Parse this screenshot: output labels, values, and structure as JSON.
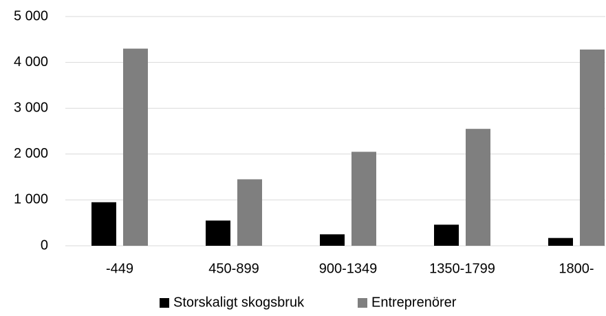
{
  "chart_data": {
    "type": "bar",
    "categories": [
      "-449",
      "450-899",
      "900-1349",
      "1350-1799",
      "1800-"
    ],
    "series": [
      {
        "name": "Storskaligt skogsbruk",
        "color": "#000000",
        "values": [
          950,
          550,
          250,
          460,
          170
        ]
      },
      {
        "name": "Entreprenörer",
        "color": "#7f7f7f",
        "values": [
          4300,
          1450,
          2050,
          2550,
          4280
        ]
      }
    ],
    "ylim": [
      0,
      5000
    ],
    "yticks": [
      0,
      {
        "value": 1000,
        "label": "1 000"
      },
      {
        "value": 2000,
        "label": "2 000"
      },
      {
        "value": 3000,
        "label": "3 000"
      },
      {
        "value": 4000,
        "label": "4 000"
      },
      {
        "value": 5000,
        "label": "5 000"
      }
    ],
    "grid": true,
    "legend": "bottom"
  }
}
